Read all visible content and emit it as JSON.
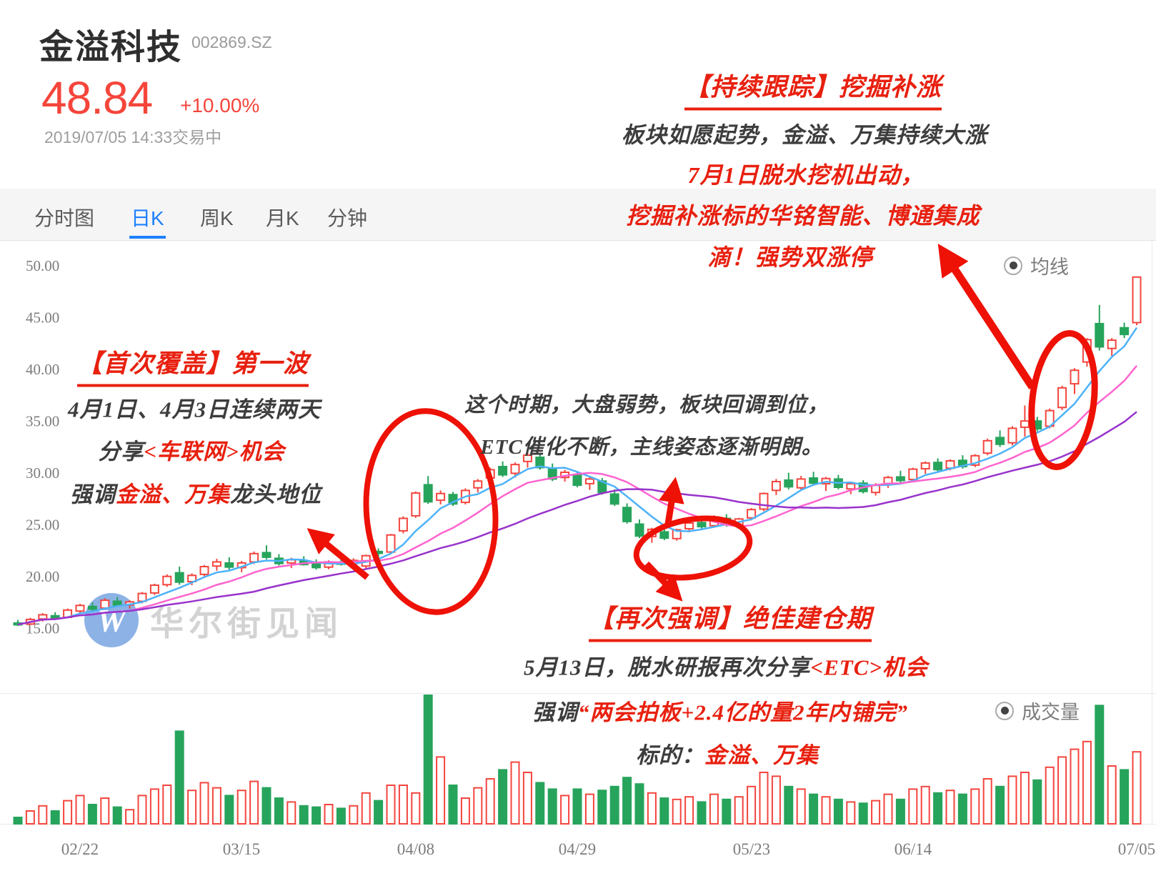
{
  "header": {
    "title": "金溢科技",
    "code": "002869.SZ",
    "price": "48.84",
    "change_pct": "+10.00%",
    "datetime": "2019/07/05 14:33",
    "status": "交易中"
  },
  "tabs": [
    {
      "id": "intraday",
      "label": "分时图",
      "active": false
    },
    {
      "id": "daily-k",
      "label": "日K",
      "active": true
    },
    {
      "id": "weekly-k",
      "label": "周K",
      "active": false
    },
    {
      "id": "monthly-k",
      "label": "月K",
      "active": false
    },
    {
      "id": "minute",
      "label": "分钟",
      "active": false
    }
  ],
  "toggles": {
    "ma_label": "均线",
    "volume_label": "成交量"
  },
  "watermark": {
    "logo_letter": "W",
    "text": "华尔街见闻"
  },
  "colors": {
    "up": "#f4453e",
    "down": "#27a45c",
    "ma5": "#4db2f9",
    "ma10": "#ff63cf",
    "ma20": "#9933cc",
    "accent_red": "#e8200f",
    "tab_active": "#1e80ff",
    "price_red": "#f5453b"
  },
  "chart_data": {
    "type": "candlestick",
    "title": "金溢科技 002869.SZ 日K线",
    "y_axis": {
      "min": 15,
      "max": 50,
      "ticks": [
        50,
        45,
        40,
        35,
        30,
        25,
        20,
        15
      ]
    },
    "x_ticks": [
      {
        "label": "02/22",
        "i": 5
      },
      {
        "label": "03/15",
        "i": 18
      },
      {
        "label": "04/08",
        "i": 32
      },
      {
        "label": "04/29",
        "i": 45
      },
      {
        "label": "05/23",
        "i": 59
      },
      {
        "label": "06/14",
        "i": 72
      },
      {
        "label": "07/05",
        "i": 90
      }
    ],
    "ma_periods": [
      5,
      10,
      20
    ],
    "legend": [
      "均线",
      "成交量"
    ],
    "candles_format": [
      "open",
      "high",
      "low",
      "close",
      "volume_rel"
    ],
    "candles": [
      [
        15.45,
        15.75,
        15.15,
        15.3,
        0.05
      ],
      [
        15.35,
        15.95,
        15.25,
        15.8,
        0.1
      ],
      [
        15.85,
        16.4,
        15.6,
        16.25,
        0.14
      ],
      [
        16.15,
        16.5,
        15.8,
        15.95,
        0.1
      ],
      [
        16.0,
        16.85,
        15.9,
        16.7,
        0.18
      ],
      [
        16.6,
        17.3,
        16.45,
        17.15,
        0.22
      ],
      [
        17.05,
        17.45,
        16.6,
        16.8,
        0.15
      ],
      [
        16.9,
        17.85,
        16.8,
        17.65,
        0.2
      ],
      [
        17.55,
        17.95,
        17.0,
        17.15,
        0.13
      ],
      [
        17.2,
        17.65,
        16.85,
        17.5,
        0.11
      ],
      [
        17.55,
        18.45,
        17.35,
        18.3,
        0.22
      ],
      [
        18.35,
        19.25,
        18.15,
        19.1,
        0.27
      ],
      [
        19.15,
        20.15,
        18.95,
        19.95,
        0.3
      ],
      [
        20.3,
        20.9,
        19.15,
        19.4,
        0.72
      ],
      [
        19.45,
        20.25,
        19.1,
        20.05,
        0.26
      ],
      [
        20.15,
        21.05,
        19.95,
        20.9,
        0.32
      ],
      [
        20.95,
        21.65,
        20.5,
        21.35,
        0.28
      ],
      [
        21.25,
        21.8,
        20.6,
        20.85,
        0.22
      ],
      [
        20.8,
        21.45,
        20.35,
        21.25,
        0.26
      ],
      [
        21.35,
        22.35,
        21.15,
        22.15,
        0.33
      ],
      [
        22.25,
        22.95,
        21.6,
        21.8,
        0.28
      ],
      [
        21.7,
        22.1,
        21.0,
        21.2,
        0.2
      ],
      [
        21.25,
        21.75,
        20.75,
        21.55,
        0.17
      ],
      [
        21.45,
        21.9,
        21.0,
        21.1,
        0.14
      ],
      [
        21.15,
        21.6,
        20.6,
        20.8,
        0.13
      ],
      [
        20.85,
        21.5,
        20.65,
        21.35,
        0.15
      ],
      [
        21.3,
        21.8,
        21.0,
        21.15,
        0.12
      ],
      [
        21.2,
        21.7,
        20.85,
        21.5,
        0.14
      ],
      [
        20.95,
        22.05,
        20.7,
        21.95,
        0.24
      ],
      [
        22.35,
        22.65,
        21.6,
        22.2,
        0.18
      ],
      [
        22.3,
        24.05,
        22.15,
        23.95,
        0.3
      ],
      [
        24.35,
        25.75,
        24.1,
        25.55,
        0.3
      ],
      [
        25.8,
        28.15,
        25.6,
        28.0,
        0.24
      ],
      [
        28.8,
        29.65,
        26.95,
        27.15,
        1.0
      ],
      [
        27.3,
        28.25,
        26.9,
        27.95,
        0.52
      ],
      [
        27.85,
        28.1,
        26.75,
        26.95,
        0.3
      ],
      [
        27.1,
        28.45,
        26.9,
        28.25,
        0.2
      ],
      [
        28.5,
        29.35,
        28.05,
        29.15,
        0.28
      ],
      [
        29.45,
        30.45,
        29.2,
        30.25,
        0.35
      ],
      [
        30.55,
        31.05,
        29.55,
        29.75,
        0.42
      ],
      [
        29.9,
        30.95,
        29.5,
        30.75,
        0.48
      ],
      [
        31.05,
        31.95,
        30.45,
        31.65,
        0.4
      ],
      [
        31.45,
        31.85,
        30.25,
        30.45,
        0.32
      ],
      [
        30.3,
        30.85,
        29.15,
        29.35,
        0.27
      ],
      [
        29.5,
        30.25,
        29.1,
        30.0,
        0.22
      ],
      [
        29.75,
        30.1,
        28.55,
        28.75,
        0.27
      ],
      [
        28.9,
        29.55,
        28.3,
        29.35,
        0.23
      ],
      [
        29.15,
        29.45,
        27.85,
        28.05,
        0.26
      ],
      [
        27.9,
        28.35,
        26.75,
        26.95,
        0.29
      ],
      [
        26.6,
        27.0,
        25.05,
        25.25,
        0.36
      ],
      [
        25.0,
        25.45,
        23.65,
        23.85,
        0.31
      ],
      [
        23.8,
        24.65,
        23.2,
        24.5,
        0.24
      ],
      [
        24.25,
        24.7,
        23.45,
        23.65,
        0.2
      ],
      [
        23.6,
        24.55,
        23.4,
        24.45,
        0.19
      ],
      [
        24.55,
        25.25,
        24.2,
        25.1,
        0.21
      ],
      [
        25.15,
        25.5,
        24.55,
        24.75,
        0.17
      ],
      [
        24.85,
        25.85,
        24.7,
        25.7,
        0.23
      ],
      [
        25.55,
        25.95,
        24.75,
        24.95,
        0.19
      ],
      [
        24.85,
        25.6,
        24.6,
        25.5,
        0.21
      ],
      [
        25.6,
        26.55,
        25.35,
        26.4,
        0.29
      ],
      [
        26.45,
        28.05,
        26.25,
        27.95,
        0.4
      ],
      [
        28.25,
        29.35,
        27.8,
        29.1,
        0.37
      ],
      [
        29.25,
        29.95,
        28.35,
        28.6,
        0.29
      ],
      [
        28.5,
        29.65,
        28.3,
        29.35,
        0.27
      ],
      [
        29.45,
        30.05,
        28.75,
        28.95,
        0.23
      ],
      [
        28.9,
        29.55,
        28.2,
        29.4,
        0.21
      ],
      [
        29.35,
        29.75,
        28.35,
        28.55,
        0.19
      ],
      [
        28.4,
        29.05,
        27.9,
        28.9,
        0.17
      ],
      [
        28.95,
        29.25,
        27.95,
        28.15,
        0.16
      ],
      [
        28.05,
        28.95,
        27.75,
        28.75,
        0.18
      ],
      [
        28.85,
        29.65,
        28.5,
        29.5,
        0.23
      ],
      [
        29.55,
        30.15,
        29.0,
        29.2,
        0.19
      ],
      [
        29.3,
        30.45,
        29.1,
        30.3,
        0.27
      ],
      [
        30.35,
        31.05,
        29.85,
        30.9,
        0.29
      ],
      [
        30.95,
        31.35,
        30.05,
        30.25,
        0.24
      ],
      [
        30.4,
        31.25,
        30.2,
        31.1,
        0.26
      ],
      [
        31.15,
        31.65,
        30.35,
        30.55,
        0.23
      ],
      [
        30.7,
        31.75,
        30.5,
        31.6,
        0.27
      ],
      [
        31.85,
        33.25,
        31.65,
        33.05,
        0.35
      ],
      [
        33.35,
        34.05,
        32.45,
        32.7,
        0.29
      ],
      [
        32.85,
        34.45,
        32.6,
        34.25,
        0.37
      ],
      [
        34.35,
        36.45,
        33.45,
        34.95,
        0.4
      ],
      [
        34.95,
        35.35,
        33.95,
        34.2,
        0.34
      ],
      [
        34.45,
        36.15,
        34.25,
        35.95,
        0.44
      ],
      [
        36.25,
        38.35,
        36.0,
        38.15,
        0.52
      ],
      [
        38.55,
        40.05,
        37.55,
        39.85,
        0.58
      ],
      [
        40.65,
        42.95,
        40.2,
        42.8,
        0.64
      ],
      [
        44.35,
        46.15,
        41.75,
        42.1,
        0.92
      ],
      [
        41.95,
        42.95,
        41.2,
        42.75,
        0.45
      ],
      [
        43.95,
        44.45,
        42.95,
        43.3,
        0.42
      ],
      [
        44.45,
        48.9,
        44.2,
        48.84,
        0.56
      ]
    ]
  },
  "annotations": [
    {
      "id": "a1",
      "underline": true,
      "segments": [
        {
          "t": "【持续跟踪】挖掘补涨",
          "c": "red"
        }
      ]
    },
    {
      "id": "a2",
      "underline": false,
      "segments": [
        {
          "t": "板块如愿起势，金溢、万集持续大涨",
          "c": "dark"
        }
      ]
    },
    {
      "id": "a3",
      "underline": false,
      "segments": [
        {
          "t": "7月1日脱水挖机出动，",
          "c": "red"
        }
      ]
    },
    {
      "id": "a4",
      "underline": false,
      "segments": [
        {
          "t": "挖掘补涨标的华铭智能、博通集成",
          "c": "red"
        }
      ]
    },
    {
      "id": "a5",
      "underline": false,
      "segments": [
        {
          "t": "滴！强势双涨停",
          "c": "red"
        }
      ]
    },
    {
      "id": "a6",
      "underline": true,
      "segments": [
        {
          "t": "【首次覆盖】第一波",
          "c": "red"
        }
      ]
    },
    {
      "id": "a7",
      "underline": false,
      "segments": [
        {
          "t": "4月1日、4月3日连续两天",
          "c": "dark"
        }
      ]
    },
    {
      "id": "a8",
      "underline": false,
      "segments": [
        {
          "t": "分享",
          "c": "dark"
        },
        {
          "t": "<车联网>机会",
          "c": "red"
        }
      ]
    },
    {
      "id": "a9",
      "underline": false,
      "segments": [
        {
          "t": "强调",
          "c": "dark"
        },
        {
          "t": "金溢、万集",
          "c": "red"
        },
        {
          "t": "龙头地位",
          "c": "dark"
        }
      ]
    },
    {
      "id": "a10",
      "underline": false,
      "segments": [
        {
          "t": "这个时期，大盘弱势，板块回调到位，",
          "c": "dark"
        }
      ]
    },
    {
      "id": "a11",
      "underline": false,
      "segments": [
        {
          "t": "ETC催化不断，主线姿态逐渐明朗。",
          "c": "dark"
        }
      ]
    },
    {
      "id": "a12",
      "underline": true,
      "segments": [
        {
          "t": "【再次强调】绝佳建仓期",
          "c": "red"
        }
      ]
    },
    {
      "id": "a13",
      "underline": false,
      "segments": [
        {
          "t": "5月13日，脱水研报再次分享",
          "c": "dark"
        },
        {
          "t": "<ETC>机会",
          "c": "red"
        }
      ]
    },
    {
      "id": "a14",
      "underline": false,
      "segments": [
        {
          "t": "强调",
          "c": "dark"
        },
        {
          "t": "“两会拍板+2.4亿的量2年内铺完”",
          "c": "red"
        }
      ]
    },
    {
      "id": "a15",
      "underline": false,
      "segments": [
        {
          "t": "标的：",
          "c": "dark"
        },
        {
          "t": "金溢、万集",
          "c": "red"
        }
      ]
    }
  ]
}
